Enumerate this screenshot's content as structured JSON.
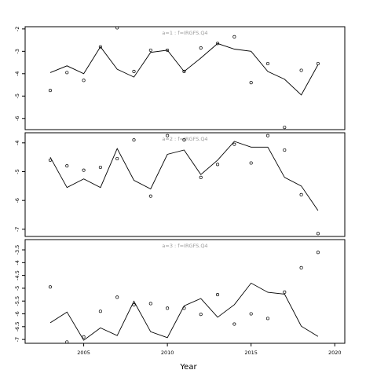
{
  "chart_data": {
    "type": "line",
    "xlabel": "Year",
    "xlim": [
      2001.5,
      2020.6
    ],
    "x_ticks": [
      2005,
      2010,
      2015,
      2020
    ],
    "x": [
      2003,
      2004,
      2005,
      2006,
      2007,
      2008,
      2009,
      2010,
      2011,
      2012,
      2013,
      2014,
      2015,
      2016,
      2017,
      2018,
      2019
    ],
    "panels": [
      {
        "label": "a=1 : f=IRGFS.Q4",
        "ylim": [
          -6.5,
          -1.9
        ],
        "y_ticks": [
          -2,
          -3,
          -4,
          -5,
          -6
        ],
        "line": [
          -3.95,
          -3.65,
          -4.0,
          -2.8,
          -3.8,
          -4.15,
          -3.05,
          -2.95,
          -3.9,
          -3.3,
          -2.65,
          -2.9,
          -3.0,
          -3.9,
          -4.25,
          -4.95,
          -3.6
        ],
        "points": [
          -4.75,
          -3.95,
          -4.3,
          -2.8,
          -1.95,
          -3.9,
          -2.95,
          -2.95,
          -3.9,
          -2.85,
          -2.65,
          -2.35,
          -4.4,
          -3.55,
          -6.4,
          -3.85,
          -3.55
        ]
      },
      {
        "label": "a=2 : f=IRGFS.Q4",
        "ylim": [
          -7.25,
          -3.65
        ],
        "y_ticks": [
          -4.0,
          -5.0,
          -6.0,
          -7.0
        ],
        "line": [
          -4.5,
          -5.55,
          -5.25,
          -5.55,
          -4.2,
          -5.3,
          -5.6,
          -4.4,
          -4.25,
          -5.1,
          -4.6,
          -3.95,
          -4.15,
          -4.15,
          -5.2,
          -5.5,
          -6.35
        ],
        "points": [
          -4.6,
          -4.8,
          -4.95,
          -4.85,
          -4.55,
          -3.9,
          -5.85,
          -3.75,
          -3.9,
          -5.2,
          -4.75,
          -4.05,
          -4.7,
          -3.75,
          -4.25,
          -5.8,
          -7.15
        ]
      },
      {
        "label": "a=3 : f=IRGFS.Q4",
        "ylim": [
          -7.15,
          -3.1
        ],
        "y_ticks": [
          -3.5,
          -4.0,
          -4.5,
          -5.0,
          -5.5,
          -6.0,
          -6.5,
          -7.0
        ],
        "line": [
          -6.35,
          -5.93,
          -7.03,
          -6.55,
          -6.85,
          -5.51,
          -6.7,
          -6.93,
          -5.69,
          -5.4,
          -6.13,
          -5.64,
          -4.8,
          -5.16,
          -5.23,
          -6.48,
          -6.88
        ],
        "points": [
          -4.95,
          -7.1,
          -6.9,
          -5.9,
          -5.35,
          -5.65,
          -5.6,
          -5.78,
          -5.78,
          -6.02,
          -5.25,
          -6.4,
          -6.0,
          -6.18,
          -5.15,
          -4.2,
          -3.6
        ]
      }
    ]
  }
}
